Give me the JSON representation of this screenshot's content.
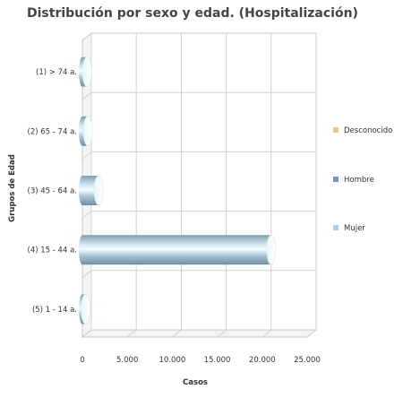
{
  "chart_data": {
    "type": "bar",
    "orientation": "horizontal",
    "style": "3d-cylinder",
    "stacked": true,
    "title": "Distribución por sexo y edad. (Hospitalización)",
    "xlabel": "Casos",
    "ylabel": "Grupos de Edad",
    "xlim": [
      0,
      25000
    ],
    "xticks": [
      0,
      5000,
      10000,
      15000,
      20000,
      25000
    ],
    "xtick_labels": [
      "0",
      "5.000",
      "10.000",
      "15.000",
      "20.000",
      "25.000"
    ],
    "categories": [
      "(1) > 74 a.",
      "(2) 65 - 74 a.",
      "(3) 45 - 64 a.",
      "(4) 15 - 44 a.",
      "(5) 1 - 14 a."
    ],
    "series": [
      {
        "name": "Mujer",
        "color": "#a8cdf0",
        "values": [
          250,
          250,
          1100,
          10600,
          350
        ]
      },
      {
        "name": "Hombre",
        "color": "#6a97c4",
        "values": [
          250,
          350,
          700,
          10400,
          0
        ]
      },
      {
        "name": "Desconocido",
        "color": "#e8c98a",
        "values": [
          0,
          0,
          0,
          0,
          0
        ]
      }
    ],
    "legend_order": [
      "Desconocido",
      "Hombre",
      "Mujer"
    ],
    "legend_position": "right",
    "grid": true
  }
}
